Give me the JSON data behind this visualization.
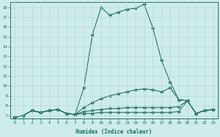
{
  "xlabel": "Humidex (Indice chaleur)",
  "bg_color": "#ceecea",
  "line_color": "#1a6b5a",
  "grid_color": "#b0d8d4",
  "xlim": [
    -0.5,
    23.5
  ],
  "ylim": [
    6.7,
    18.5
  ],
  "xticks": [
    0,
    1,
    2,
    3,
    4,
    5,
    6,
    7,
    8,
    9,
    10,
    11,
    12,
    13,
    14,
    15,
    16,
    17,
    18,
    19,
    20,
    21,
    22,
    23
  ],
  "yticks": [
    7,
    8,
    9,
    10,
    11,
    12,
    13,
    14,
    15,
    16,
    17,
    18
  ],
  "line1_x": [
    0,
    1,
    2,
    3,
    4,
    5,
    6,
    7,
    8,
    9,
    10,
    11,
    12,
    13,
    14,
    15,
    16,
    17,
    18,
    19,
    20,
    21,
    22,
    23
  ],
  "line1_y": [
    6.8,
    7.0,
    7.5,
    7.3,
    7.5,
    7.6,
    7.2,
    7.1,
    9.8,
    15.2,
    18.0,
    17.2,
    17.5,
    17.8,
    17.9,
    18.3,
    15.9,
    12.6,
    10.4,
    8.6,
    8.5,
    7.2,
    7.5,
    7.6
  ],
  "line2_x": [
    0,
    1,
    2,
    3,
    4,
    5,
    6,
    7,
    8,
    9,
    10,
    11,
    12,
    13,
    14,
    15,
    16,
    17,
    18,
    19,
    20,
    21,
    22,
    23
  ],
  "line2_y": [
    6.8,
    7.0,
    7.5,
    7.3,
    7.5,
    7.6,
    7.2,
    7.1,
    7.8,
    8.3,
    8.7,
    9.0,
    9.2,
    9.4,
    9.6,
    9.7,
    9.6,
    9.4,
    9.8,
    8.6,
    8.5,
    7.2,
    7.5,
    7.6
  ],
  "line3_x": [
    0,
    1,
    2,
    3,
    4,
    5,
    6,
    7,
    8,
    9,
    10,
    11,
    12,
    13,
    14,
    15,
    16,
    17,
    18,
    19,
    20,
    21,
    22,
    23
  ],
  "line3_y": [
    6.8,
    7.0,
    7.5,
    7.3,
    7.5,
    7.6,
    7.2,
    7.1,
    7.4,
    7.5,
    7.6,
    7.7,
    7.7,
    7.8,
    7.8,
    7.8,
    7.8,
    7.8,
    7.8,
    7.9,
    8.5,
    7.2,
    7.5,
    7.6
  ],
  "line4_x": [
    0,
    1,
    2,
    3,
    4,
    5,
    6,
    7,
    8,
    9,
    10,
    11,
    12,
    13,
    14,
    15,
    16,
    17,
    18,
    19,
    20,
    21,
    22,
    23
  ],
  "line4_y": [
    6.8,
    7.0,
    7.5,
    7.3,
    7.5,
    7.6,
    7.2,
    7.1,
    7.2,
    7.2,
    7.3,
    7.3,
    7.3,
    7.3,
    7.3,
    7.3,
    7.3,
    7.3,
    7.3,
    7.4,
    8.5,
    7.2,
    7.5,
    7.6
  ]
}
